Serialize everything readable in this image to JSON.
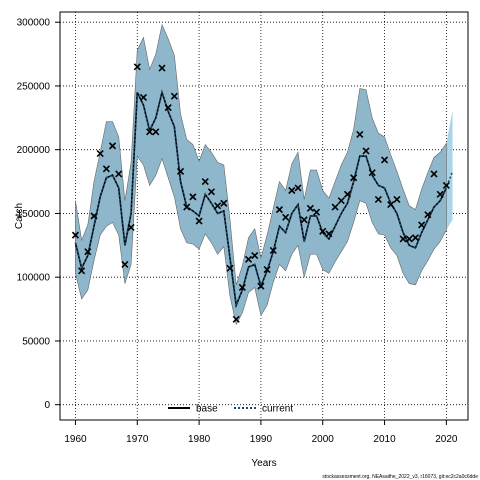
{
  "chart_data": {
    "type": "line",
    "title": "",
    "xlabel": "Years",
    "ylabel": "Catch",
    "xlim": [
      1957.5,
      2023.5
    ],
    "ylim": [
      -12000,
      308000
    ],
    "grid": true,
    "xticks": [
      1960,
      1970,
      1980,
      1990,
      2000,
      2010,
      2020
    ],
    "yticks": [
      0,
      50000,
      100000,
      150000,
      200000,
      250000,
      300000
    ],
    "xtick_labels": [
      "1960",
      "1970",
      "1980",
      "1990",
      "2000",
      "2010",
      "2020"
    ],
    "ytick_labels": [
      "0",
      "50000",
      "100000",
      "150000",
      "200000",
      "250000",
      "300000"
    ],
    "legend": {
      "position": "bottom-center",
      "entries": [
        "base",
        "current"
      ]
    },
    "footer": "stockassessment.org, NEAsaithe_2022_v3, r16073, git:ec2c2a0c6dde",
    "colors": {
      "band_base": "#8eb7cc",
      "band_current": "#a3cfe7",
      "band_edge": "#666666",
      "line_base": "#000000",
      "line_current": "#1a4a6b",
      "points": "#000000"
    },
    "series": [
      {
        "name": "base",
        "x": [
          1960,
          1961,
          1962,
          1963,
          1964,
          1965,
          1966,
          1967,
          1968,
          1969,
          1970,
          1971,
          1972,
          1973,
          1974,
          1975,
          1976,
          1977,
          1978,
          1979,
          1980,
          1981,
          1982,
          1983,
          1984,
          1985,
          1986,
          1987,
          1988,
          1989,
          1990,
          1991,
          1992,
          1993,
          1994,
          1995,
          1996,
          1997,
          1998,
          1999,
          2000,
          2001,
          2002,
          2003,
          2004,
          2005,
          2006,
          2007,
          2008,
          2009,
          2010,
          2011,
          2012,
          2013,
          2014,
          2015,
          2016,
          2017,
          2018,
          2019,
          2020
        ],
        "y": [
          127000,
          107000,
          117000,
          140000,
          163000,
          178000,
          180000,
          170000,
          125000,
          150000,
          245000,
          235000,
          215000,
          225000,
          245000,
          230000,
          218000,
          175000,
          155000,
          152000,
          148000,
          165000,
          158000,
          150000,
          152000,
          115000,
          78000,
          90000,
          108000,
          110000,
          93000,
          105000,
          120000,
          140000,
          135000,
          150000,
          157000,
          128000,
          148000,
          148000,
          135000,
          130000,
          140000,
          150000,
          158000,
          175000,
          195000,
          195000,
          180000,
          172000,
          170000,
          158000,
          150000,
          135000,
          125000,
          123000,
          135000,
          145000,
          155000,
          160000,
          170000
        ],
        "lower": [
          103000,
          83000,
          90000,
          113000,
          133000,
          140000,
          143000,
          133000,
          95000,
          110000,
          195000,
          188000,
          172000,
          180000,
          193000,
          178000,
          163000,
          138000,
          127000,
          126000,
          122000,
          134000,
          127000,
          118000,
          124000,
          85000,
          63000,
          72000,
          88000,
          92000,
          70000,
          78000,
          96000,
          110000,
          105000,
          118000,
          125000,
          100000,
          118000,
          118000,
          106000,
          103000,
          112000,
          120000,
          128000,
          143000,
          160000,
          158000,
          143000,
          134000,
          133000,
          123000,
          117000,
          103000,
          95000,
          94000,
          105000,
          113000,
          122000,
          128000,
          137000
        ],
        "upper": [
          160000,
          129000,
          141000,
          175000,
          198000,
          222000,
          222000,
          210000,
          160000,
          190000,
          278000,
          288000,
          263000,
          275000,
          298000,
          287000,
          274000,
          228000,
          208000,
          204000,
          191000,
          204000,
          198000,
          190000,
          188000,
          145000,
          94000,
          109000,
          131000,
          138000,
          115000,
          133000,
          154000,
          175000,
          168000,
          189000,
          198000,
          161000,
          184000,
          184000,
          168000,
          162000,
          175000,
          188000,
          198000,
          216000,
          248000,
          247000,
          225000,
          213000,
          210000,
          196000,
          183000,
          169000,
          156000,
          153000,
          169000,
          182000,
          194000,
          198000,
          205000
        ]
      },
      {
        "name": "current",
        "x": [
          1960,
          1961,
          1962,
          1963,
          1964,
          1965,
          1966,
          1967,
          1968,
          1969,
          1970,
          1971,
          1972,
          1973,
          1974,
          1975,
          1976,
          1977,
          1978,
          1979,
          1980,
          1981,
          1982,
          1983,
          1984,
          1985,
          1986,
          1987,
          1988,
          1989,
          1990,
          1991,
          1992,
          1993,
          1994,
          1995,
          1996,
          1997,
          1998,
          1999,
          2000,
          2001,
          2002,
          2003,
          2004,
          2005,
          2006,
          2007,
          2008,
          2009,
          2010,
          2011,
          2012,
          2013,
          2014,
          2015,
          2016,
          2017,
          2018,
          2019,
          2020,
          2021
        ],
        "y": [
          127000,
          107000,
          117000,
          140000,
          163000,
          178000,
          180000,
          170000,
          125000,
          150000,
          245000,
          235000,
          215000,
          225000,
          245000,
          230000,
          218000,
          175000,
          155000,
          152000,
          148000,
          165000,
          158000,
          150000,
          152000,
          115000,
          78000,
          90000,
          108000,
          110000,
          93000,
          105000,
          120000,
          140000,
          135000,
          150000,
          157000,
          128000,
          148000,
          148000,
          135000,
          130000,
          140000,
          150000,
          158000,
          175000,
          195000,
          195000,
          180000,
          172000,
          170000,
          158000,
          150000,
          135000,
          125000,
          123000,
          135000,
          145000,
          155000,
          160000,
          170000,
          183000
        ],
        "lower": [
          103000,
          83000,
          90000,
          113000,
          133000,
          140000,
          143000,
          133000,
          95000,
          110000,
          195000,
          188000,
          172000,
          180000,
          193000,
          178000,
          163000,
          138000,
          127000,
          126000,
          122000,
          134000,
          127000,
          118000,
          124000,
          85000,
          63000,
          72000,
          88000,
          92000,
          70000,
          78000,
          96000,
          110000,
          105000,
          118000,
          125000,
          100000,
          118000,
          118000,
          106000,
          103000,
          112000,
          120000,
          128000,
          143000,
          160000,
          158000,
          143000,
          134000,
          133000,
          123000,
          117000,
          103000,
          95000,
          94000,
          105000,
          113000,
          122000,
          128000,
          137000,
          145000
        ],
        "upper": [
          160000,
          129000,
          141000,
          175000,
          198000,
          222000,
          222000,
          210000,
          160000,
          190000,
          278000,
          288000,
          263000,
          275000,
          298000,
          287000,
          274000,
          228000,
          208000,
          204000,
          191000,
          204000,
          198000,
          190000,
          188000,
          145000,
          94000,
          109000,
          131000,
          138000,
          115000,
          133000,
          154000,
          175000,
          168000,
          189000,
          198000,
          161000,
          184000,
          184000,
          168000,
          162000,
          175000,
          188000,
          198000,
          216000,
          248000,
          247000,
          225000,
          213000,
          210000,
          196000,
          183000,
          169000,
          156000,
          153000,
          169000,
          182000,
          194000,
          198000,
          205000,
          231000
        ]
      }
    ],
    "observations": {
      "x": [
        1960,
        1961,
        1962,
        1963,
        1964,
        1965,
        1966,
        1967,
        1968,
        1969,
        1970,
        1971,
        1972,
        1973,
        1974,
        1975,
        1976,
        1977,
        1978,
        1979,
        1980,
        1981,
        1982,
        1983,
        1984,
        1985,
        1986,
        1987,
        1988,
        1989,
        1990,
        1991,
        1992,
        1993,
        1994,
        1995,
        1996,
        1997,
        1998,
        1999,
        2000,
        2001,
        2002,
        2003,
        2004,
        2005,
        2006,
        2007,
        2008,
        2009,
        2010,
        2011,
        2012,
        2013,
        2014,
        2015,
        2016,
        2017,
        2018,
        2019,
        2020
      ],
      "y": [
        133000,
        105000,
        120000,
        148000,
        197000,
        185000,
        203000,
        181000,
        110000,
        139000,
        265000,
        241000,
        214000,
        214000,
        264000,
        233000,
        242000,
        183000,
        155000,
        163000,
        144000,
        175000,
        167000,
        156000,
        158000,
        107000,
        67000,
        92000,
        114000,
        117000,
        93000,
        106000,
        121000,
        153000,
        147000,
        168000,
        170000,
        145000,
        154000,
        151000,
        136000,
        134000,
        155000,
        160000,
        165000,
        178000,
        212000,
        199000,
        182000,
        161000,
        192000,
        157000,
        161000,
        130000,
        130000,
        131000,
        141000,
        149000,
        181000,
        165000,
        172000
      ]
    }
  }
}
